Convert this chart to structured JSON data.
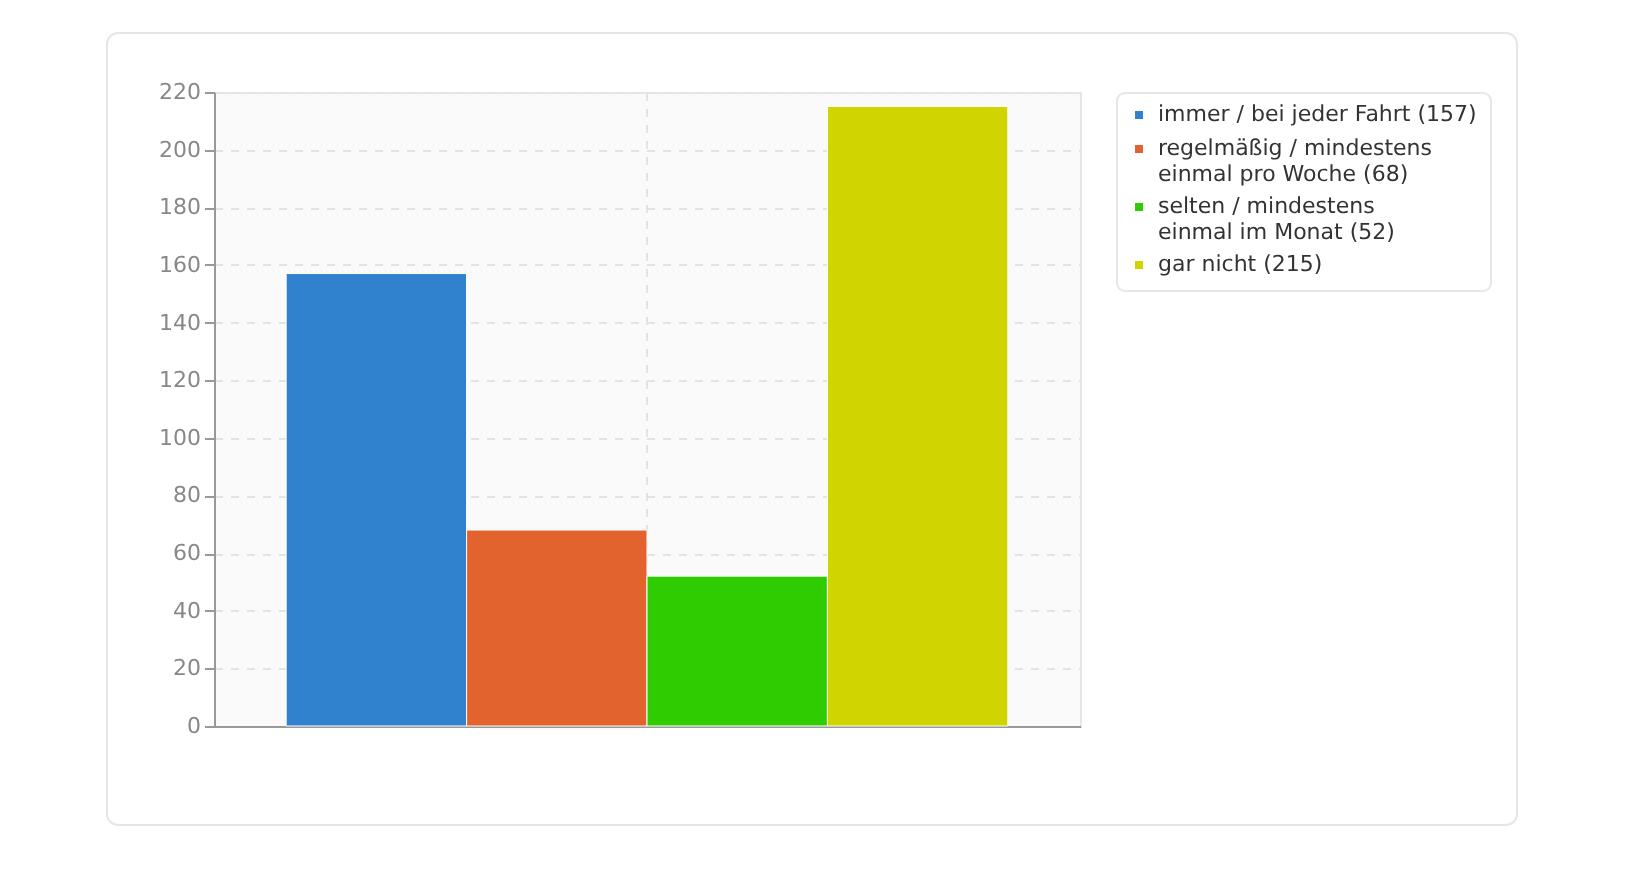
{
  "chart_data": {
    "type": "bar",
    "categories": [
      null
    ],
    "series": [
      {
        "name": "immer / bei jeder Fahrt (157)",
        "color": "#3182ce",
        "values": [
          157
        ]
      },
      {
        "name": "regelmäßig / mindestens einmal pro Woche (68)",
        "color": "#e2632e",
        "values": [
          68
        ]
      },
      {
        "name": "selten / mindestens einmal im Monat (52)",
        "color": "#2ecc00",
        "values": [
          52
        ]
      },
      {
        "name": "gar nicht (215)",
        "color": "#d0d400",
        "values": [
          215
        ]
      }
    ],
    "ylim": [
      0,
      220
    ],
    "yticks": [
      0,
      20,
      40,
      60,
      80,
      100,
      120,
      140,
      160,
      180,
      200,
      220
    ],
    "grid": true,
    "legend": "right",
    "tick_labels": "y"
  }
}
